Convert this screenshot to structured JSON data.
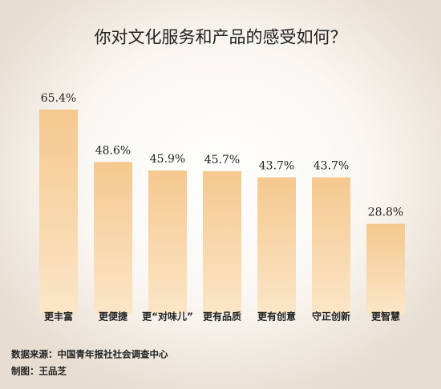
{
  "chart_data": {
    "type": "bar",
    "title": "你对文化服务和产品的感受如何？",
    "categories": [
      "更丰富",
      "更便捷",
      "更“对味儿”",
      "更有品质",
      "更有创意",
      "守正创新",
      "更智慧"
    ],
    "values": [
      65.4,
      48.6,
      45.9,
      45.7,
      43.7,
      43.7,
      28.8
    ],
    "value_labels": [
      "65.4%",
      "48.6%",
      "45.9%",
      "45.7%",
      "43.7%",
      "43.7%",
      "28.8%"
    ],
    "color": "#f5c88f",
    "notes": [
      "数据来源：中国青年报社社会调查中心",
      "制图：王品芝"
    ]
  }
}
